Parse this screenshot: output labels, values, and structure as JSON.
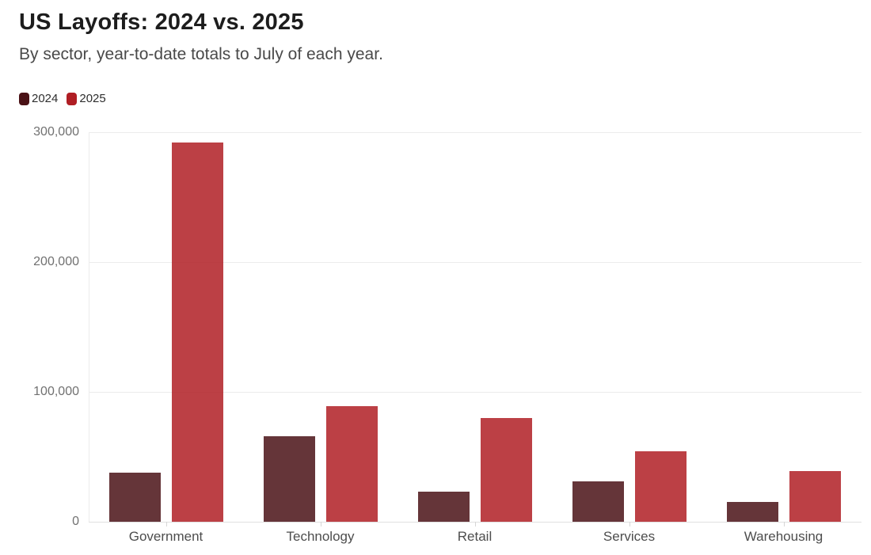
{
  "header": {
    "title": "US Layoffs: 2024 vs. 2025",
    "subtitle": "By sector, year-to-date totals to July of each year."
  },
  "legend": {
    "items": [
      {
        "label": "2024",
        "color": "#4a1216"
      },
      {
        "label": "2025",
        "color": "#b01e24"
      }
    ]
  },
  "chart_data": {
    "type": "bar",
    "title": "US Layoffs: 2024 vs. 2025",
    "subtitle": "By sector, year-to-date totals to July of each year.",
    "categories": [
      "Government",
      "Technology",
      "Retail",
      "Services",
      "Warehousing"
    ],
    "series": [
      {
        "name": "2024",
        "color": "#4a1216",
        "values": [
          38000,
          66000,
          23000,
          31000,
          15000
        ]
      },
      {
        "name": "2025",
        "color": "#b01e24",
        "values": [
          292000,
          89000,
          80000,
          54000,
          39000
        ]
      }
    ],
    "xlabel": "",
    "ylabel": "",
    "ylim": [
      0,
      300000
    ],
    "yticks": [
      0,
      100000,
      200000,
      300000
    ],
    "ytick_labels": [
      "0",
      "100,000",
      "200,000",
      "300,000"
    ],
    "grid": "horizontal",
    "legend_position": "top-left",
    "bar_fill_opacity": 0.85
  }
}
